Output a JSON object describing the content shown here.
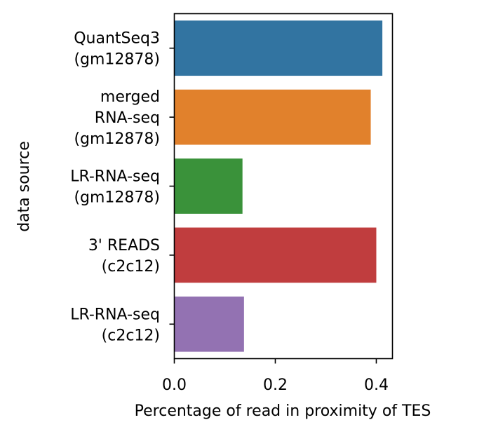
{
  "chart_data": {
    "type": "bar",
    "orientation": "horizontal",
    "categories": [
      [
        "QuantSeq3",
        "(gm12878)"
      ],
      [
        "merged",
        "RNA-seq",
        "(gm12878)"
      ],
      [
        "LR-RNA-seq",
        "(gm12878)"
      ],
      [
        "3' READS",
        "(c2c12)"
      ],
      [
        "LR-RNA-seq",
        "(c2c12)"
      ]
    ],
    "values": [
      0.412,
      0.389,
      0.135,
      0.4,
      0.138
    ],
    "colors": [
      "#3274a1",
      "#e1812c",
      "#3a923a",
      "#c03d3e",
      "#9372b2"
    ],
    "xlabel": "Percentage of read in proximity of TES",
    "ylabel": "data source",
    "xlim": [
      0.0,
      0.432
    ],
    "xticks": [
      0.0,
      0.2,
      0.4
    ],
    "xtick_labels": [
      "0.0",
      "0.2",
      "0.4"
    ],
    "grid": false,
    "legend": false
  }
}
